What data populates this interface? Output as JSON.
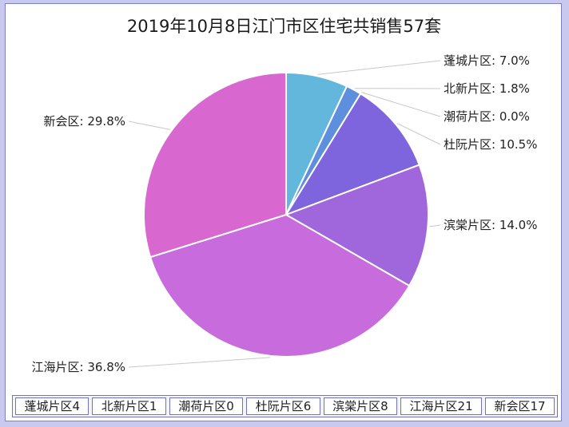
{
  "chart_data": {
    "type": "pie",
    "title": "2019年10月8日江门市区住宅共销售57套",
    "slices": [
      {
        "name": "蓬城片区",
        "value": 4,
        "percent_label": "7.0%",
        "color": "#63b6dc"
      },
      {
        "name": "北新片区",
        "value": 1,
        "percent_label": "1.8%",
        "color": "#5e8fde"
      },
      {
        "name": "潮荷片区",
        "value": 0,
        "percent_label": "0.0%",
        "color": "#6f77de"
      },
      {
        "name": "杜阮片区",
        "value": 6,
        "percent_label": "10.5%",
        "color": "#7e65dd"
      },
      {
        "name": "滨棠片区",
        "value": 8,
        "percent_label": "14.0%",
        "color": "#a066db"
      },
      {
        "name": "江海片区",
        "value": 21,
        "percent_label": "36.8%",
        "color": "#c76bdd"
      },
      {
        "name": "新会区",
        "value": 17,
        "percent_label": "29.8%",
        "color": "#d868cf"
      }
    ]
  }
}
